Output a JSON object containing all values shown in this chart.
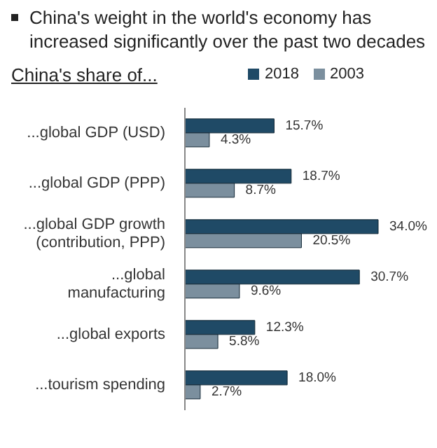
{
  "chart_data": {
    "type": "bar",
    "orientation": "horizontal",
    "title": "China's weight in the world's economy has increased significantly over the past two decades",
    "subtitle": "China's share of...",
    "categories": [
      "...global GDP (USD)",
      "...global GDP (PPP)",
      "...global GDP growth (contribution, PPP)",
      "...global manufacturing",
      "...global exports",
      "...tourism spending"
    ],
    "series": [
      {
        "name": "2018",
        "color": "#1f4a66",
        "values": [
          15.7,
          18.7,
          34.0,
          30.7,
          12.3,
          18.0
        ],
        "value_labels": [
          "15.7%",
          "18.7%",
          "34.0%",
          "30.7%",
          "12.3%",
          "18.0%"
        ]
      },
      {
        "name": "2003",
        "color": "#7b8f9e",
        "values": [
          4.3,
          8.7,
          20.5,
          9.6,
          5.8,
          2.7
        ],
        "value_labels": [
          "4.3%",
          "8.7%",
          "20.5%",
          "9.6%",
          "5.8%",
          "2.7%"
        ]
      }
    ],
    "legend": "top right",
    "grid": false
  }
}
